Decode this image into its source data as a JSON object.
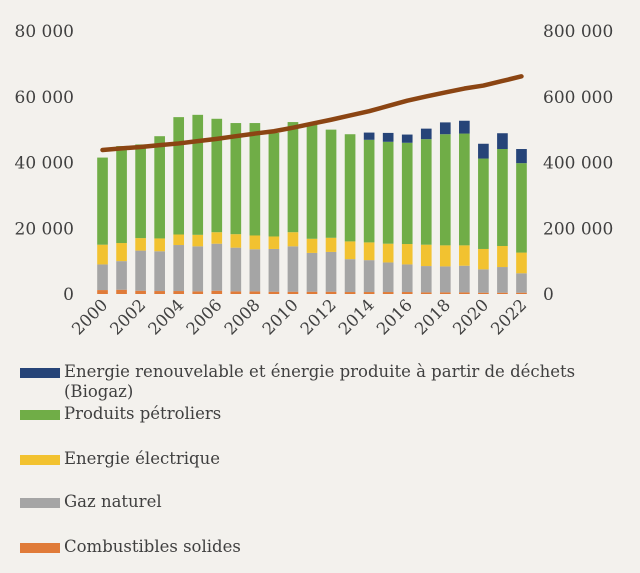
{
  "chart_data": {
    "type": "bar",
    "stacked": true,
    "categories": [
      "2000",
      "2001",
      "2002",
      "2003",
      "2004",
      "2005",
      "2006",
      "2007",
      "2008",
      "2009",
      "2010",
      "2011",
      "2012",
      "2013",
      "2014",
      "2015",
      "2016",
      "2017",
      "2018",
      "2019",
      "2020",
      "2021",
      "2022"
    ],
    "x_tick_labels": [
      "2000",
      "2002",
      "2004",
      "2006",
      "2008",
      "2010",
      "2012",
      "2014",
      "2016",
      "2018",
      "2020",
      "2022"
    ],
    "ylim": [
      0,
      80000
    ],
    "y_ticks": [
      "0",
      "20 000",
      "40 000",
      "60 000",
      "80 000"
    ],
    "y2lim": [
      0,
      800000
    ],
    "y2_ticks": [
      "0",
      "200 000",
      "400 000",
      "600 000",
      "800 000"
    ],
    "grid": false,
    "legend_position": "bottom",
    "series": [
      {
        "name": "Combustibles solides",
        "color": "#e07b39",
        "values": [
          1200,
          1300,
          1000,
          900,
          900,
          800,
          1000,
          800,
          800,
          700,
          700,
          700,
          700,
          600,
          600,
          600,
          600,
          500,
          500,
          500,
          400,
          400,
          400
        ]
      },
      {
        "name": "Gaz naturel",
        "color": "#a5a5a5",
        "values": [
          7800,
          8700,
          12200,
          12100,
          14000,
          13700,
          14300,
          13300,
          12800,
          13000,
          13800,
          11800,
          12100,
          10000,
          9700,
          9000,
          8400,
          8000,
          7900,
          8100,
          7100,
          7800,
          5900
        ]
      },
      {
        "name": "Energie électrique",
        "color": "#f2c230",
        "values": [
          6000,
          5500,
          3800,
          3900,
          3200,
          3500,
          3500,
          4100,
          4200,
          3800,
          4300,
          4300,
          4300,
          5400,
          5400,
          5700,
          6200,
          6500,
          6400,
          6200,
          6200,
          6400,
          6300
        ]
      },
      {
        "name": "Produits pétroliers",
        "color": "#70ad47",
        "values": [
          26500,
          29500,
          28500,
          31100,
          35700,
          36500,
          34500,
          33800,
          34200,
          31500,
          33500,
          34700,
          32900,
          32600,
          31200,
          31000,
          30800,
          32100,
          33800,
          34000,
          27500,
          29500,
          27200
        ]
      },
      {
        "name": "Energie renouvelable et énergie produite à partir de déchets (Biogaz)",
        "color": "#264478",
        "values": [
          0,
          0,
          0,
          0,
          0,
          0,
          0,
          0,
          0,
          0,
          0,
          0,
          0,
          0,
          2200,
          2700,
          2500,
          3200,
          3600,
          3900,
          4500,
          4800,
          4300
        ]
      }
    ],
    "line": {
      "axis": "secondary",
      "color": "#8b4513",
      "values": [
        438000,
        443000,
        447000,
        453000,
        458000,
        465000,
        472000,
        480000,
        488000,
        495000,
        506000,
        518000,
        530000,
        543000,
        556000,
        572000,
        588000,
        601000,
        613000,
        625000,
        634000,
        648000,
        662000
      ]
    }
  }
}
